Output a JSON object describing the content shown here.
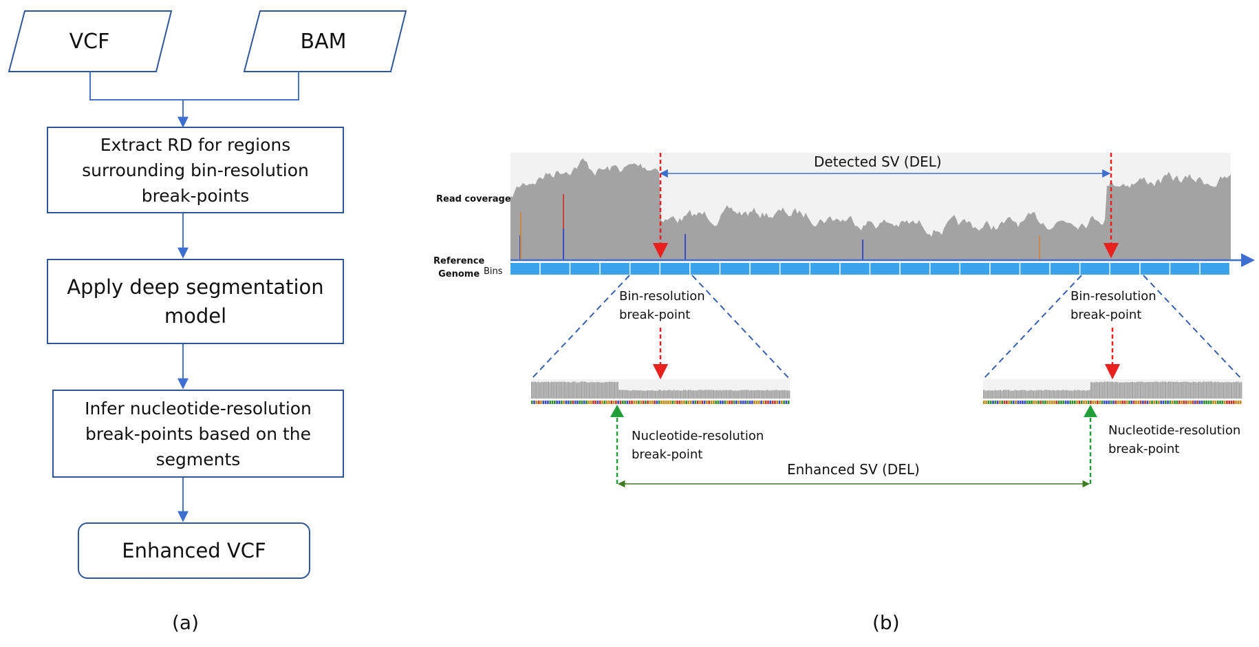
{
  "panel_a": {
    "inputs": {
      "vcf": "VCF",
      "bam": "BAM"
    },
    "steps": {
      "extract": [
        "Extract RD for regions",
        "surrounding bin-resolution",
        "break-points"
      ],
      "segment": [
        "Apply deep segmentation",
        "model"
      ],
      "infer": [
        "Infer nucleotide-resolution",
        "break-points based on the",
        "segments"
      ]
    },
    "output": "Enhanced VCF",
    "caption": "(a)"
  },
  "panel_b": {
    "read_coverage_label": "Read coverage",
    "reference_label": [
      "Reference",
      "Genome"
    ],
    "bins_label": "Bins",
    "detected_sv": "Detected SV (DEL)",
    "enhanced_sv": "Enhanced SV (DEL)",
    "bin_breakpoint_left": [
      "Bin-resolution",
      "break-point"
    ],
    "bin_breakpoint_right": [
      "Bin-resolution",
      "break-point"
    ],
    "nuc_breakpoint_left": [
      "Nucleotide-resolution",
      "break-point"
    ],
    "nuc_breakpoint_right": [
      "Nucleotide-resolution",
      "break-point"
    ],
    "caption": "(b)",
    "colors": {
      "flow_border": "#2f5597",
      "coverage": "#a3a3a3",
      "coverage_bg": "#f2f2f2",
      "bins": "#3aa3ec",
      "genome_axis": "#3d6fd1",
      "bin_breakpoint_arrow": "#e8211f",
      "nucleotide_arrow": "#229e3a",
      "enhanced_line": "#3f7a23",
      "zoom_lines": "#355fae"
    }
  }
}
